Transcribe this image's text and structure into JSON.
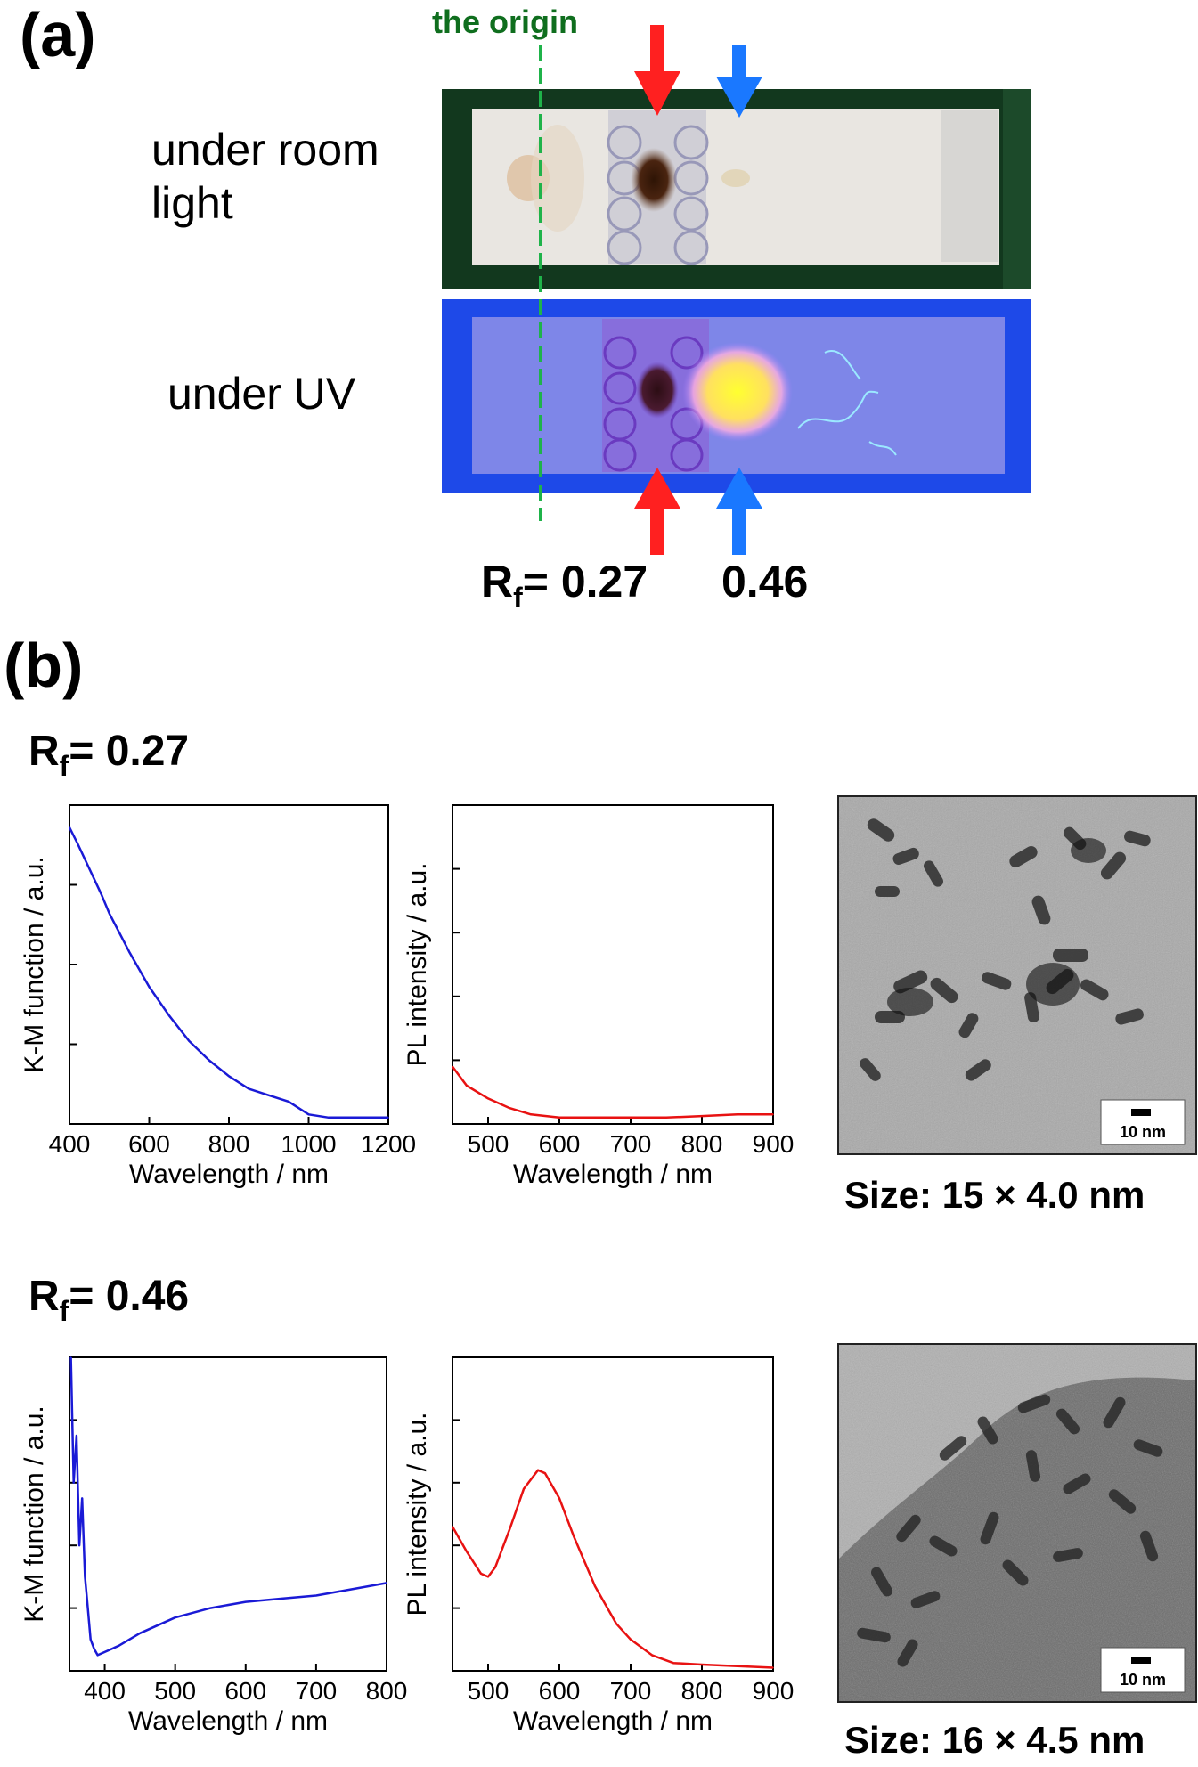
{
  "panel_a": {
    "label": "(a)",
    "origin_label": "the origin",
    "room_light_label": "under room\nlight",
    "uv_label": "under UV",
    "rf_prefix": "R",
    "rf_sub": "f",
    "rf_value_1": "= 0.27",
    "rf_value_2": "0.46",
    "colors": {
      "red_arrow": "#ff2020",
      "blue_arrow": "#1a78ff",
      "origin_line": "#1fb34a",
      "plate_green": "#12381e",
      "plate_uv": "#1e49e8"
    }
  },
  "panel_b": {
    "label": "(b)",
    "rows": [
      {
        "rf_prefix": "R",
        "rf_sub": "f",
        "rf_value": "= 0.27",
        "tem_scalebar": "10 nm",
        "size_label": "Size: 15 × 4.0 nm"
      },
      {
        "rf_prefix": "R",
        "rf_sub": "f",
        "rf_value": "= 0.46",
        "tem_scalebar": "10 nm",
        "size_label": "Size: 16 × 4.5 nm"
      }
    ]
  },
  "chart_data": [
    {
      "type": "line",
      "id": "km_027",
      "xlabel": "Wavelength / nm",
      "ylabel": "K-M function / a.u.",
      "xlim": [
        400,
        1200
      ],
      "xticks": [
        400,
        600,
        800,
        1000,
        1200
      ],
      "ylim": [
        0,
        1
      ],
      "yticks_unlabeled": [
        0.25,
        0.5,
        0.75
      ],
      "color": "#1a1ad6",
      "series": [
        {
          "x": [
            400,
            420,
            450,
            480,
            500,
            550,
            600,
            650,
            700,
            750,
            800,
            850,
            900,
            950,
            1000,
            1050,
            1100,
            1150,
            1200
          ],
          "y": [
            0.93,
            0.88,
            0.8,
            0.72,
            0.66,
            0.54,
            0.43,
            0.34,
            0.26,
            0.2,
            0.15,
            0.11,
            0.09,
            0.07,
            0.03,
            0.02,
            0.02,
            0.02,
            0.02
          ]
        }
      ]
    },
    {
      "type": "line",
      "id": "pl_027",
      "xlabel": "Wavelength / nm",
      "ylabel": "PL intensity / a.u.",
      "xlim": [
        450,
        900
      ],
      "xticks": [
        500,
        600,
        700,
        800,
        900
      ],
      "ylim": [
        0,
        1
      ],
      "yticks_unlabeled": [
        0.2,
        0.4,
        0.6,
        0.8
      ],
      "color": "#e81212",
      "series": [
        {
          "x": [
            450,
            470,
            500,
            530,
            560,
            600,
            650,
            700,
            750,
            800,
            850,
            900
          ],
          "y": [
            0.18,
            0.12,
            0.08,
            0.05,
            0.03,
            0.02,
            0.02,
            0.02,
            0.02,
            0.025,
            0.03,
            0.03
          ]
        }
      ]
    },
    {
      "type": "line",
      "id": "km_046",
      "xlabel": "Wavelength / nm",
      "ylabel": "K-M function / a.u.",
      "xlim": [
        350,
        800
      ],
      "xticks": [
        400,
        500,
        600,
        700,
        800
      ],
      "ylim": [
        0,
        1
      ],
      "yticks_unlabeled": [
        0.2,
        0.4,
        0.6,
        0.8
      ],
      "color": "#1a1ad6",
      "series": [
        {
          "x": [
            352,
            356,
            360,
            364,
            368,
            372,
            376,
            380,
            385,
            390,
            400,
            420,
            450,
            500,
            550,
            600,
            650,
            700,
            750,
            800
          ],
          "y": [
            1.0,
            0.6,
            0.75,
            0.4,
            0.55,
            0.3,
            0.2,
            0.1,
            0.07,
            0.05,
            0.06,
            0.08,
            0.12,
            0.17,
            0.2,
            0.22,
            0.23,
            0.24,
            0.26,
            0.28
          ]
        }
      ]
    },
    {
      "type": "line",
      "id": "pl_046",
      "xlabel": "Wavelength / nm",
      "ylabel": "PL intensity / a.u.",
      "xlim": [
        450,
        900
      ],
      "xticks": [
        500,
        600,
        700,
        800,
        900
      ],
      "ylim": [
        0,
        1
      ],
      "yticks_unlabeled": [
        0.2,
        0.4,
        0.6,
        0.8
      ],
      "color": "#e81212",
      "series": [
        {
          "x": [
            450,
            470,
            490,
            500,
            510,
            530,
            550,
            570,
            580,
            600,
            620,
            650,
            680,
            700,
            730,
            760,
            800,
            850,
            900
          ],
          "y": [
            0.46,
            0.38,
            0.31,
            0.3,
            0.33,
            0.45,
            0.58,
            0.64,
            0.63,
            0.55,
            0.43,
            0.27,
            0.15,
            0.1,
            0.05,
            0.025,
            0.02,
            0.015,
            0.01
          ]
        }
      ]
    }
  ]
}
